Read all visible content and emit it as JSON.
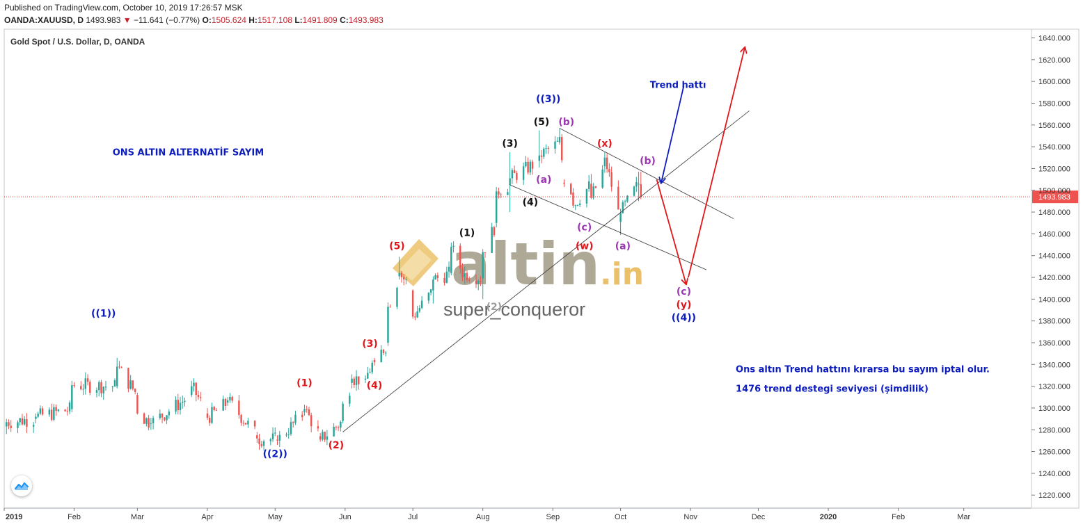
{
  "header": {
    "published": "Published on TradingView.com, October 10, 2019 17:26:57 MSK",
    "symbol": "OANDA:XAUUSD, D",
    "last": "1493.983",
    "change_arrow": "▼",
    "change": "−11.641 (−0.77%)",
    "o_label": "O:",
    "o": "1505.624",
    "h_label": "H:",
    "h": "1517.108",
    "l_label": "L:",
    "l": "1491.809",
    "c_label": "C:",
    "c": "1493.983"
  },
  "colors": {
    "up": "#26a69a",
    "down": "#ef5350",
    "blue": "#0d1dbd",
    "red": "#e0161b",
    "black": "#111111",
    "purple": "#9b37b0",
    "price_line": "#e53935"
  },
  "chart_data": {
    "type": "candlestick",
    "title": "Gold Spot / U.S. Dollar, D, OANDA",
    "ylim": [
      1208,
      1648
    ],
    "y_ticks": [
      "1640.000",
      "1620.000",
      "1600.000",
      "1580.000",
      "1560.000",
      "1540.000",
      "1520.000",
      "1500.000",
      "1480.000",
      "1460.000",
      "1440.000",
      "1420.000",
      "1400.000",
      "1380.000",
      "1360.000",
      "1340.000",
      "1320.000",
      "1300.000",
      "1280.000",
      "1260.000",
      "1240.000",
      "1220.000"
    ],
    "x_ticks": [
      "2019",
      "Feb",
      "Mar",
      "Apr",
      "May",
      "Jun",
      "Jul",
      "Aug",
      "Sep",
      "Oct",
      "Nov",
      "Dec",
      "2020",
      "Feb",
      "Mar"
    ],
    "last_price_label": "1493.983",
    "last_price": 1493.983,
    "ohlc": {
      "2019-01-02": [
        1283,
        1290,
        1276,
        1287
      ],
      "2019-01-15": [
        1290,
        1295,
        1286,
        1292
      ],
      "2019-01-31": [
        1299,
        1325,
        1296,
        1321
      ],
      "2019-02-20": [
        1320,
        1346,
        1318,
        1338
      ],
      "2019-03-01": [
        1312,
        1314,
        1294,
        1295
      ],
      "2019-03-07": [
        1286,
        1291,
        1280,
        1286
      ],
      "2019-03-25": [
        1312,
        1325,
        1310,
        1320
      ],
      "2019-04-01": [
        1295,
        1300,
        1289,
        1291
      ],
      "2019-04-10": [
        1305,
        1310,
        1302,
        1307
      ],
      "2019-04-23": [
        1275,
        1278,
        1268,
        1272
      ],
      "2019-05-02": [
        1271,
        1275,
        1266,
        1270
      ],
      "2019-05-14": [
        1296,
        1303,
        1293,
        1299
      ],
      "2019-05-21": [
        1274,
        1277,
        1269,
        1271
      ],
      "2019-05-31": [
        1288,
        1306,
        1286,
        1304
      ],
      "2019-06-04": [
        1323,
        1331,
        1318,
        1327
      ],
      "2019-06-10": [
        1326,
        1330,
        1323,
        1327
      ],
      "2019-06-14": [
        1344,
        1346,
        1339,
        1342
      ],
      "2019-06-20": [
        1360,
        1397,
        1357,
        1393
      ],
      "2019-06-25": [
        1421,
        1439,
        1418,
        1424
      ],
      "2019-07-01": [
        1408,
        1409,
        1382,
        1384
      ],
      "2019-07-10": [
        1408,
        1421,
        1396,
        1418
      ],
      "2019-07-18": [
        1424,
        1452,
        1422,
        1448
      ],
      "2019-07-24": [
        1420,
        1430,
        1414,
        1424
      ],
      "2019-08-01": [
        1419,
        1446,
        1400,
        1443
      ],
      "2019-08-07": [
        1470,
        1503,
        1466,
        1499
      ],
      "2019-08-13": [
        1505,
        1535,
        1480,
        1511
      ],
      "2019-08-26": [
        1527,
        1555,
        1521,
        1532
      ],
      "2019-09-04": [
        1544,
        1557,
        1542,
        1549
      ],
      "2019-09-06": [
        1507,
        1510,
        1503,
        1506
      ],
      "2019-09-10": [
        1498,
        1502,
        1484,
        1486
      ],
      "2019-09-18": [
        1506,
        1515,
        1492,
        1493
      ],
      "2019-09-24": [
        1522,
        1535,
        1516,
        1530
      ],
      "2019-10-01": [
        1471,
        1483,
        1459,
        1479
      ],
      "2019-10-09": [
        1506,
        1517,
        1490,
        1506
      ],
      "2019-10-10": [
        1505.624,
        1517.108,
        1491.809,
        1493.983
      ]
    },
    "lines": [
      {
        "name": "rising-trendline",
        "from": [
          "2019-05-31",
          1278
        ],
        "to": [
          "2019-11-27",
          1573
        ]
      },
      {
        "name": "upper-channel-line",
        "from": [
          "2019-09-04",
          1557
        ],
        "to": [
          "2019-11-20",
          1474
        ]
      },
      {
        "name": "lower-channel-line",
        "from": [
          "2019-08-13",
          1505
        ],
        "to": [
          "2019-11-08",
          1427
        ]
      }
    ],
    "arrows": [
      {
        "name": "trend-hatti-arrow",
        "color": "blue",
        "from": [
          "2019-10-29",
          1596
        ],
        "to": [
          "2019-10-19",
          1507
        ]
      },
      {
        "name": "down-arrow",
        "color": "red",
        "from": [
          "2019-10-17",
          1510
        ],
        "to": [
          "2019-10-30",
          1414
        ]
      },
      {
        "name": "up-arrow",
        "color": "red",
        "from": [
          "2019-10-31",
          1420
        ],
        "to": [
          "2019-11-25",
          1631
        ]
      }
    ],
    "labels": [
      {
        "text": "((1))",
        "x": "2019-02-14",
        "y": 1384,
        "color": "blue"
      },
      {
        "text": "((2))",
        "x": "2019-05-01",
        "y": 1255,
        "color": "blue"
      },
      {
        "text": "(1)",
        "x": "2019-05-14",
        "y": 1320,
        "color": "red"
      },
      {
        "text": "(2)",
        "x": "2019-05-28",
        "y": 1263,
        "color": "red"
      },
      {
        "text": "(3)",
        "x": "2019-06-12",
        "y": 1356,
        "color": "red"
      },
      {
        "text": "(4)",
        "x": "2019-06-14",
        "y": 1318,
        "color": "red"
      },
      {
        "text": "(5)",
        "x": "2019-06-24",
        "y": 1446,
        "color": "red"
      },
      {
        "text": "(1)",
        "x": "2019-07-25",
        "y": 1458,
        "color": "black"
      },
      {
        "text": "(2)",
        "x": "2019-08-06",
        "y": 1390,
        "color": "gray"
      },
      {
        "text": "(3)",
        "x": "2019-08-13",
        "y": 1540,
        "color": "black"
      },
      {
        "text": "(4)",
        "x": "2019-08-22",
        "y": 1486,
        "color": "black"
      },
      {
        "text": "(5)",
        "x": "2019-08-27",
        "y": 1560,
        "color": "black"
      },
      {
        "text": "((3))",
        "x": "2019-08-30",
        "y": 1581,
        "color": "blue"
      },
      {
        "text": "(b)",
        "x": "2019-09-07",
        "y": 1560,
        "color": "purple"
      },
      {
        "text": "(a)",
        "x": "2019-08-28",
        "y": 1507,
        "color": "purple"
      },
      {
        "text": "(c)",
        "x": "2019-09-15",
        "y": 1463,
        "color": "purple"
      },
      {
        "text": "(w)",
        "x": "2019-09-15",
        "y": 1446,
        "color": "red"
      },
      {
        "text": "(x)",
        "x": "2019-09-24",
        "y": 1540,
        "color": "red"
      },
      {
        "text": "(a)",
        "x": "2019-10-02",
        "y": 1446,
        "color": "purple"
      },
      {
        "text": "(b)",
        "x": "2019-10-13",
        "y": 1524,
        "color": "purple"
      },
      {
        "text": "(c)",
        "x": "2019-10-29",
        "y": 1404,
        "color": "purple"
      },
      {
        "text": "(y)",
        "x": "2019-10-29",
        "y": 1392,
        "color": "red"
      },
      {
        "text": "((4))",
        "x": "2019-10-29",
        "y": 1380,
        "color": "blue"
      }
    ],
    "annotations": [
      {
        "text": "ONS ALTIN  ALTERNATİF SAYIM",
        "x": "2019-02-18",
        "y": 1532,
        "color": "blue"
      },
      {
        "text": "Trend hattı",
        "x": "2019-10-14",
        "y": 1594,
        "color": "blue"
      },
      {
        "text": "Ons altın Trend hattını kırarsa bu sayım iptal olur.",
        "x": "2019-11-21",
        "y": 1333,
        "color": "blue"
      },
      {
        "text": "1476 trend destegi seviyesi (şimdilik)",
        "x": "2019-11-21",
        "y": 1315,
        "color": "blue"
      }
    ],
    "watermark": {
      "brand": "altin",
      "suffix": ".in",
      "user": "super_conqueror"
    }
  }
}
